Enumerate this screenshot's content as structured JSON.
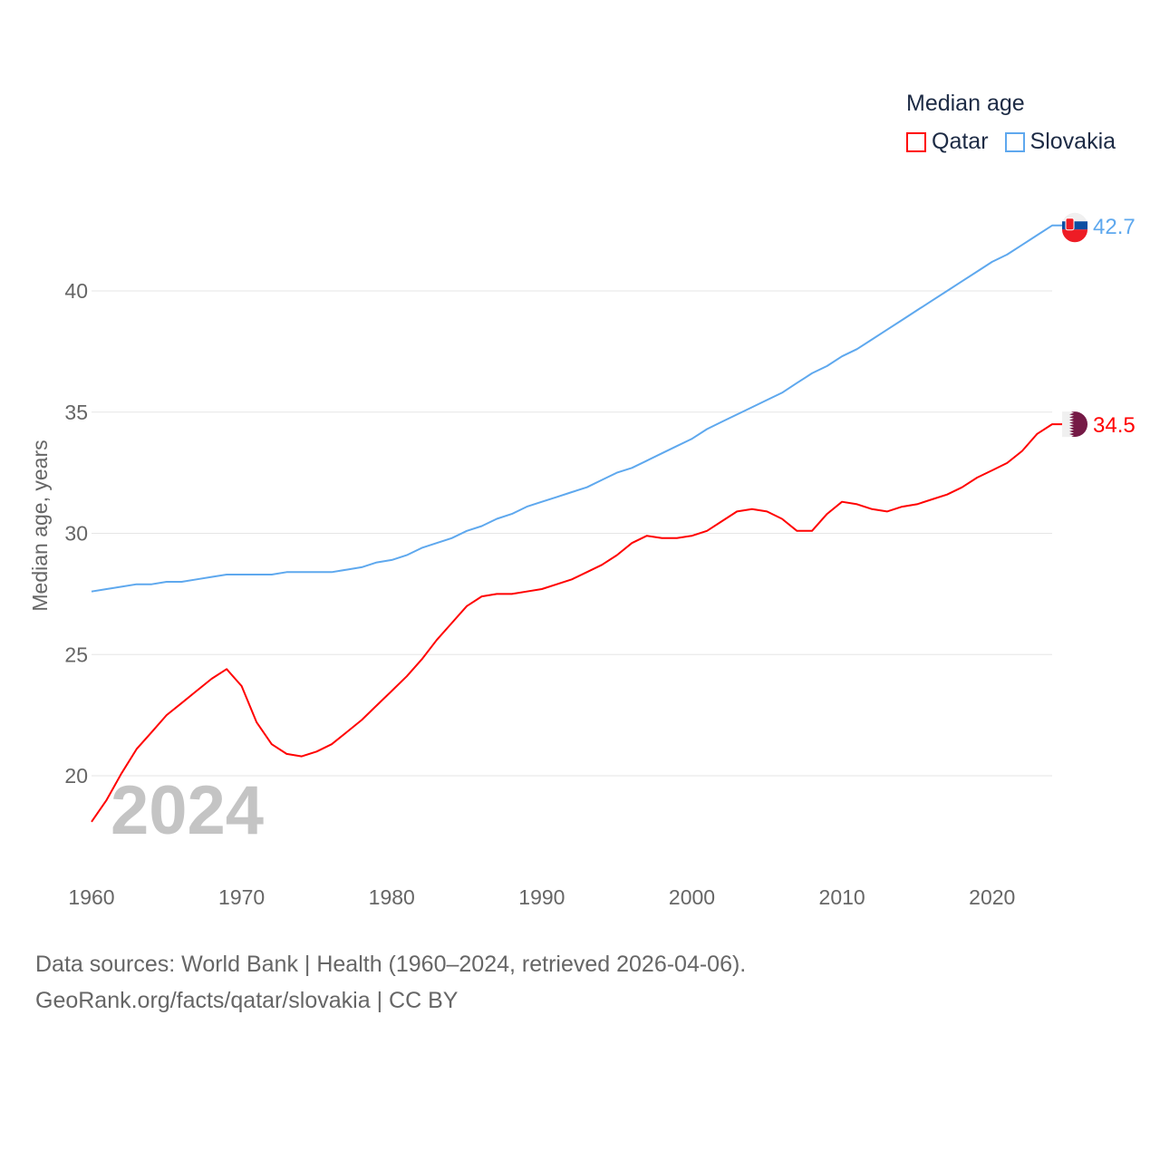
{
  "chart_data": {
    "type": "line",
    "title": "Median age",
    "ylabel": "Median age, years",
    "xlabel": "",
    "xlim": [
      1960,
      2024
    ],
    "ylim": [
      18,
      43
    ],
    "x_ticks": [
      1960,
      1970,
      1980,
      1990,
      2000,
      2010,
      2020
    ],
    "y_ticks": [
      20,
      25,
      30,
      35,
      40
    ],
    "grid": true,
    "legend_placement": "top-right",
    "watermark_year": "2024",
    "x": [
      1960,
      1961,
      1962,
      1963,
      1964,
      1965,
      1966,
      1967,
      1968,
      1969,
      1970,
      1971,
      1972,
      1973,
      1974,
      1975,
      1976,
      1977,
      1978,
      1979,
      1980,
      1981,
      1982,
      1983,
      1984,
      1985,
      1986,
      1987,
      1988,
      1989,
      1990,
      1991,
      1992,
      1993,
      1994,
      1995,
      1996,
      1997,
      1998,
      1999,
      2000,
      2001,
      2002,
      2003,
      2004,
      2005,
      2006,
      2007,
      2008,
      2009,
      2010,
      2011,
      2012,
      2013,
      2014,
      2015,
      2016,
      2017,
      2018,
      2019,
      2020,
      2021,
      2022,
      2023,
      2024
    ],
    "series": [
      {
        "name": "Qatar",
        "color": "#ff0000",
        "end_label": "34.5",
        "values": [
          18.1,
          19.0,
          20.1,
          21.1,
          21.8,
          22.5,
          23.0,
          23.5,
          24.0,
          24.4,
          23.7,
          22.2,
          21.3,
          20.9,
          20.8,
          21.0,
          21.3,
          21.8,
          22.3,
          22.9,
          23.5,
          24.1,
          24.8,
          25.6,
          26.3,
          27.0,
          27.4,
          27.5,
          27.5,
          27.6,
          27.7,
          27.9,
          28.1,
          28.4,
          28.7,
          29.1,
          29.6,
          29.9,
          29.8,
          29.8,
          29.9,
          30.1,
          30.5,
          30.9,
          31.0,
          30.9,
          30.6,
          30.1,
          30.1,
          30.8,
          31.3,
          31.2,
          31.0,
          30.9,
          31.1,
          31.2,
          31.4,
          31.6,
          31.9,
          32.3,
          32.6,
          32.9,
          33.4,
          34.1,
          34.5
        ]
      },
      {
        "name": "Slovakia",
        "color": "#5ea8ee",
        "end_label": "42.7",
        "values": [
          27.6,
          27.7,
          27.8,
          27.9,
          27.9,
          28.0,
          28.0,
          28.1,
          28.2,
          28.3,
          28.3,
          28.3,
          28.3,
          28.4,
          28.4,
          28.4,
          28.4,
          28.5,
          28.6,
          28.8,
          28.9,
          29.1,
          29.4,
          29.6,
          29.8,
          30.1,
          30.3,
          30.6,
          30.8,
          31.1,
          31.3,
          31.5,
          31.7,
          31.9,
          32.2,
          32.5,
          32.7,
          33.0,
          33.3,
          33.6,
          33.9,
          34.3,
          34.6,
          34.9,
          35.2,
          35.5,
          35.8,
          36.2,
          36.6,
          36.9,
          37.3,
          37.6,
          38.0,
          38.4,
          38.8,
          39.2,
          39.6,
          40.0,
          40.4,
          40.8,
          41.2,
          41.5,
          41.9,
          42.3,
          42.7
        ]
      }
    ]
  },
  "footer": {
    "line1": "Data sources: World Bank | Health (1960–2024, retrieved 2026-04-06).",
    "line2": "GeoRank.org/facts/qatar/slovakia | CC BY"
  }
}
